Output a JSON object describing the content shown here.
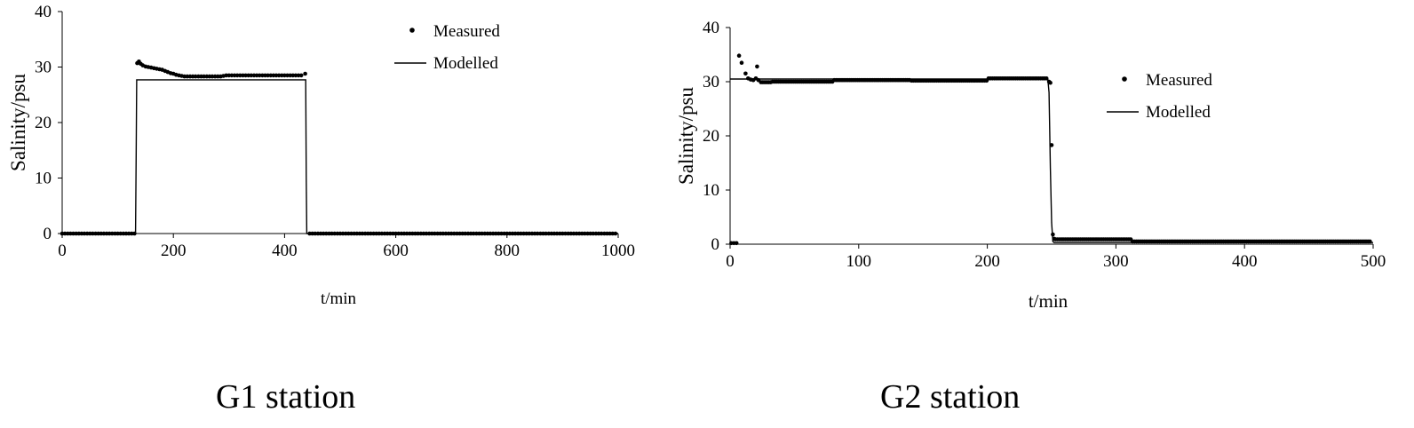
{
  "chart_data": [
    {
      "type": "scatter",
      "caption": "G1 station",
      "xlabel": "t/min",
      "ylabel": "Salinity/psu",
      "xlim": [
        0,
        1000
      ],
      "ylim": [
        0,
        40
      ],
      "xticks": [
        0,
        200,
        400,
        600,
        800,
        1000
      ],
      "yticks": [
        0,
        10,
        20,
        30,
        40
      ],
      "legend_position": "top-right",
      "grid": false,
      "series": [
        {
          "name": "Measured",
          "kind": "points",
          "segments": [
            {
              "x_start": 0,
              "x_end": 132,
              "y": 0,
              "step": 5
            },
            {
              "x_start": 445,
              "x_end": 995,
              "y": 0,
              "step": 5
            }
          ],
          "points": [
            [
              135,
              30.7
            ],
            [
              138,
              31.0
            ],
            [
              141,
              30.6
            ],
            [
              145,
              30.3
            ],
            [
              150,
              30.1
            ],
            [
              155,
              30.0
            ],
            [
              160,
              29.9
            ],
            [
              165,
              29.8
            ],
            [
              170,
              29.7
            ],
            [
              175,
              29.6
            ],
            [
              180,
              29.5
            ],
            [
              185,
              29.3
            ],
            [
              190,
              29.1
            ],
            [
              195,
              28.9
            ],
            [
              200,
              28.8
            ],
            [
              205,
              28.6
            ],
            [
              210,
              28.5
            ],
            [
              215,
              28.4
            ],
            [
              220,
              28.3
            ],
            [
              225,
              28.3
            ],
            [
              230,
              28.3
            ],
            [
              235,
              28.3
            ],
            [
              240,
              28.3
            ],
            [
              245,
              28.3
            ],
            [
              250,
              28.3
            ],
            [
              255,
              28.3
            ],
            [
              260,
              28.3
            ],
            [
              265,
              28.3
            ],
            [
              270,
              28.3
            ],
            [
              275,
              28.3
            ],
            [
              280,
              28.3
            ],
            [
              285,
              28.3
            ],
            [
              290,
              28.4
            ],
            [
              295,
              28.5
            ],
            [
              300,
              28.5
            ],
            [
              305,
              28.5
            ],
            [
              310,
              28.5
            ],
            [
              315,
              28.5
            ],
            [
              320,
              28.5
            ],
            [
              325,
              28.5
            ],
            [
              330,
              28.5
            ],
            [
              335,
              28.5
            ],
            [
              340,
              28.5
            ],
            [
              345,
              28.5
            ],
            [
              350,
              28.5
            ],
            [
              355,
              28.5
            ],
            [
              360,
              28.5
            ],
            [
              365,
              28.5
            ],
            [
              370,
              28.5
            ],
            [
              375,
              28.5
            ],
            [
              380,
              28.5
            ],
            [
              385,
              28.5
            ],
            [
              390,
              28.5
            ],
            [
              395,
              28.5
            ],
            [
              400,
              28.5
            ],
            [
              405,
              28.5
            ],
            [
              410,
              28.5
            ],
            [
              415,
              28.5
            ],
            [
              420,
              28.5
            ],
            [
              425,
              28.5
            ],
            [
              430,
              28.5
            ],
            [
              437,
              28.8
            ]
          ]
        },
        {
          "name": "Modelled",
          "kind": "line",
          "points": [
            [
              0,
              0
            ],
            [
              132,
              0
            ],
            [
              133,
              14
            ],
            [
              134,
              27.7
            ],
            [
              438,
              27.7
            ],
            [
              439,
              10
            ],
            [
              440,
              0
            ],
            [
              1000,
              0
            ]
          ]
        }
      ]
    },
    {
      "type": "scatter",
      "caption": "G2 station",
      "xlabel": "t/min",
      "ylabel": "Salinity/psu",
      "xlim": [
        0,
        500
      ],
      "ylim": [
        0,
        40
      ],
      "xticks": [
        0,
        100,
        200,
        300,
        400,
        500
      ],
      "yticks": [
        0,
        10,
        20,
        30,
        40
      ],
      "legend_position": "right",
      "grid": false,
      "series": [
        {
          "name": "Measured",
          "kind": "points",
          "segments": [
            {
              "x_start": 24,
              "x_end": 32,
              "y": 29.9,
              "step": 1.5
            },
            {
              "x_start": 33,
              "x_end": 80,
              "y": 30.0,
              "step": 1.5
            },
            {
              "x_start": 81,
              "x_end": 140,
              "y": 30.3,
              "step": 1.5
            },
            {
              "x_start": 141,
              "x_end": 200,
              "y": 30.2,
              "step": 1.5
            },
            {
              "x_start": 201,
              "x_end": 247,
              "y": 30.6,
              "step": 1.5
            },
            {
              "x_start": 253,
              "x_end": 312,
              "y": 0.9,
              "step": 1.5
            },
            {
              "x_start": 313,
              "x_end": 498,
              "y": 0.5,
              "step": 1.5
            }
          ],
          "points": [
            [
              1,
              0.2
            ],
            [
              3,
              0.2
            ],
            [
              5,
              0.2
            ],
            [
              7,
              34.8
            ],
            [
              9,
              33.5
            ],
            [
              12,
              31.5
            ],
            [
              14,
              30.6
            ],
            [
              16,
              30.4
            ],
            [
              18,
              30.3
            ],
            [
              20,
              30.6
            ],
            [
              21,
              32.8
            ],
            [
              22,
              30.3
            ],
            [
              248,
              30.0
            ],
            [
              249,
              29.8
            ],
            [
              250,
              18.3
            ],
            [
              251,
              1.8
            ],
            [
              252,
              1.0
            ]
          ]
        },
        {
          "name": "Modelled",
          "kind": "line",
          "points": [
            [
              0,
              30.5
            ],
            [
              247,
              30.5
            ],
            [
              248,
              28
            ],
            [
              249,
              14
            ],
            [
              250,
              4
            ],
            [
              251,
              0.5
            ],
            [
              252,
              0.3
            ],
            [
              500,
              0.3
            ]
          ]
        }
      ]
    }
  ]
}
